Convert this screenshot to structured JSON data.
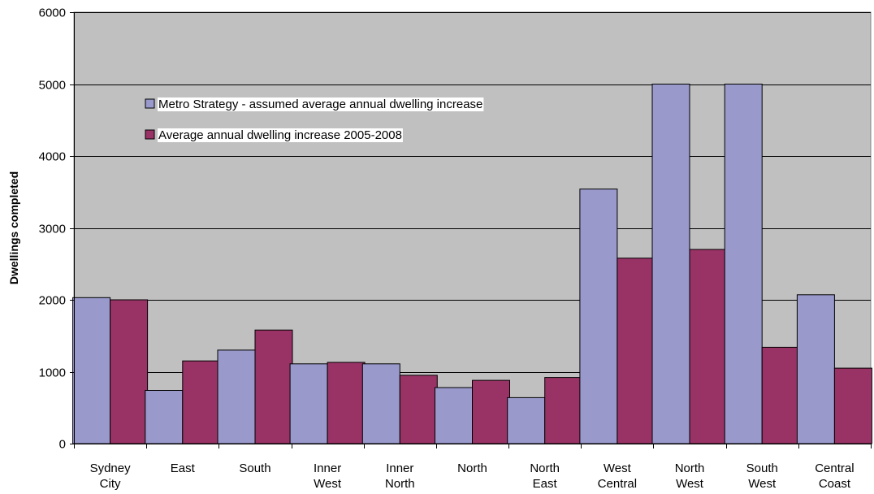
{
  "chart_data": {
    "type": "bar",
    "title": "",
    "xlabel": "",
    "ylabel": "Dwellings completed",
    "ylim": [
      0,
      6000
    ],
    "yticks": [
      0,
      1000,
      2000,
      3000,
      4000,
      5000,
      6000
    ],
    "grid": true,
    "legend_position": "top-left",
    "categories": [
      [
        "Sydney",
        "City"
      ],
      [
        "East"
      ],
      [
        "South"
      ],
      [
        "Inner",
        "West"
      ],
      [
        "Inner",
        "North"
      ],
      [
        "North"
      ],
      [
        "North",
        "East"
      ],
      [
        "West",
        "Central"
      ],
      [
        "North",
        "West"
      ],
      [
        "South",
        "West"
      ],
      [
        "Central",
        "Coast"
      ]
    ],
    "series": [
      {
        "name": "Metro Strategy - assumed average annual dwelling increase",
        "color": "#9999cc",
        "values": [
          2030,
          740,
          1300,
          1110,
          1110,
          780,
          640,
          3540,
          5000,
          5000,
          2070
        ]
      },
      {
        "name": "Average annual dwelling increase 2005-2008",
        "color": "#993366",
        "values": [
          2000,
          1150,
          1580,
          1130,
          950,
          880,
          920,
          2580,
          2700,
          1340,
          1050
        ]
      }
    ],
    "colors": {
      "plot_background": "#c0c0c0",
      "gridline": "#000000",
      "axis": "#808080"
    }
  }
}
